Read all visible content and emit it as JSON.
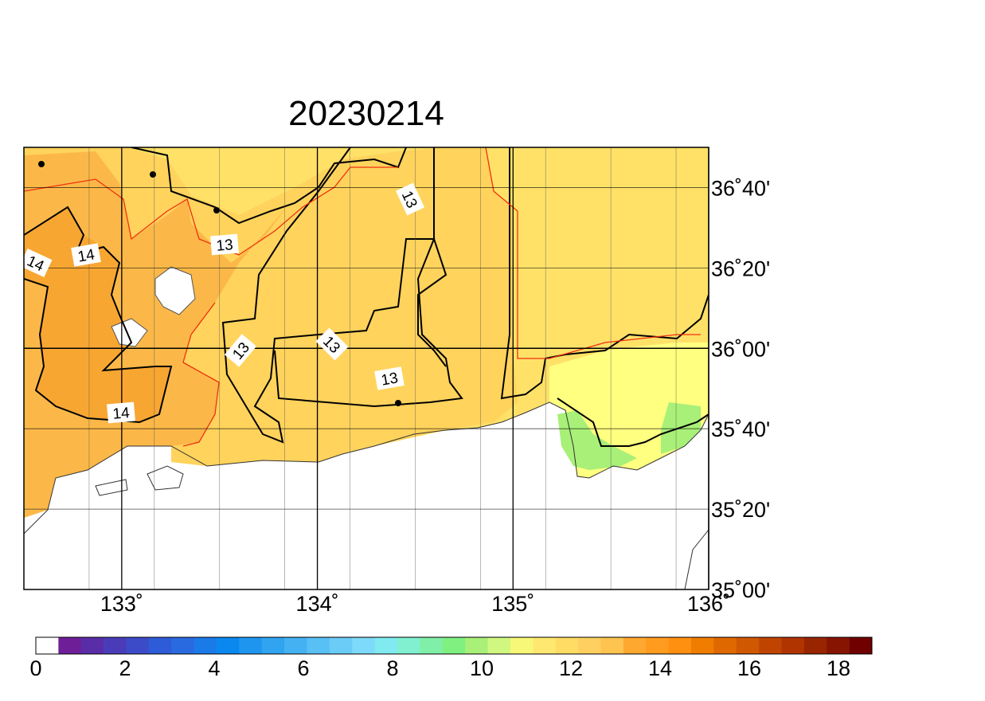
{
  "map": {
    "title": "20230214",
    "lon_ticks": [
      {
        "value": 133,
        "label": "133˚"
      },
      {
        "value": 134,
        "label": "134˚"
      },
      {
        "value": 135,
        "label": "135˚"
      },
      {
        "value": 136,
        "label": "136˚"
      }
    ],
    "lat_ticks": [
      {
        "value": 36.6667,
        "label": "36˚40'"
      },
      {
        "value": 36.3333,
        "label": "36˚20'"
      },
      {
        "value": 36,
        "label": "36˚00'"
      },
      {
        "value": 35.6667,
        "label": "35˚40'"
      },
      {
        "value": 35.3333,
        "label": "35˚20'"
      },
      {
        "value": 35,
        "label": "35˚00'"
      }
    ],
    "lon_range": [
      132.5,
      136
    ],
    "lat_range": [
      35,
      36.8333
    ],
    "contour_labels": [
      "13",
      "14",
      "14",
      "13",
      "13",
      "13",
      "13",
      "14"
    ],
    "colorbar": {
      "range": [
        0,
        18.75
      ],
      "ticks": [
        0,
        2,
        4,
        6,
        8,
        10,
        12,
        14,
        16,
        18
      ],
      "colors": [
        "#ffffff",
        "#6e1e96",
        "#5a2da8",
        "#4a3cb8",
        "#3c4cc8",
        "#2e5cd8",
        "#2a6ae0",
        "#1a7ae8",
        "#0a88f0",
        "#1e96f0",
        "#30a4f0",
        "#44b2f2",
        "#58c0f4",
        "#6cccf8",
        "#7edafa",
        "#80eaf0",
        "#80f0d0",
        "#80f0a8",
        "#80f080",
        "#a8f078",
        "#d0f880",
        "#f8f878",
        "#ffe870",
        "#ffdc64",
        "#ffd060",
        "#ffc450",
        "#ffa830",
        "#ff9c20",
        "#ff9010",
        "#f07c00",
        "#e06800",
        "#d05800",
        "#c04400",
        "#b03400",
        "#982400",
        "#861400",
        "#700000"
      ]
    }
  }
}
